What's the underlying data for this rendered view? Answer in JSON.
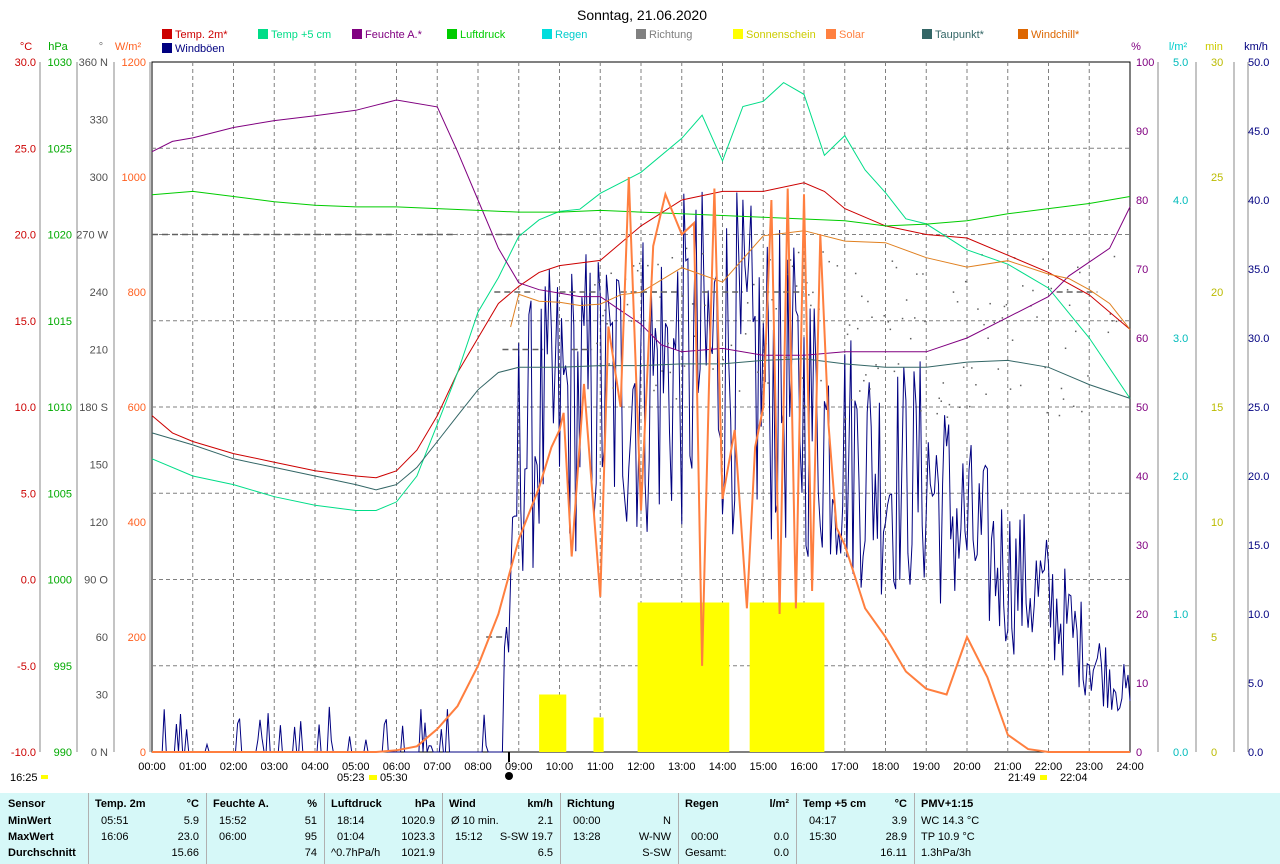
{
  "chart_data": {
    "type": "line",
    "title": "Sonntag, 21.06.2020",
    "x": [
      "00:00",
      "01:00",
      "02:00",
      "03:00",
      "04:00",
      "05:00",
      "06:00",
      "07:00",
      "08:00",
      "09:00",
      "10:00",
      "11:00",
      "12:00",
      "13:00",
      "14:00",
      "15:00",
      "16:00",
      "17:00",
      "18:00",
      "19:00",
      "20:00",
      "21:00",
      "22:00",
      "23:00",
      "24:00"
    ],
    "x_ticks": [
      "00:00",
      "01:00",
      "02:00",
      "03:00",
      "04:00",
      "05:00",
      "06:00",
      "07:00",
      "08:00",
      "09:00",
      "10:00",
      "11:00",
      "12:00",
      "13:00",
      "14:00",
      "15:00",
      "16:00",
      "17:00",
      "18:00",
      "19:00",
      "20:00",
      "21:00",
      "22:00",
      "23:00",
      "24:00"
    ],
    "sun_times": {
      "sunrise": "05:23",
      "sunrise2": "05:30",
      "sunset": "21:49",
      "sunset2": "22:04",
      "time_mark": "16:25"
    },
    "axes": {
      "temp": {
        "unit": "°C",
        "ticks": [
          "30.0",
          "25.0",
          "20.0",
          "15.0",
          "10.0",
          "5.0",
          "0.0",
          "-5.0",
          "-10.0"
        ],
        "ylim": [
          -10,
          30
        ],
        "color": "#cc0000"
      },
      "pressure": {
        "unit": "hPa",
        "ticks": [
          "1030",
          "1025",
          "1020",
          "1015",
          "1010",
          "1005",
          "1000",
          "995",
          "990"
        ],
        "ylim": [
          990,
          1030
        ],
        "color": "#00cc00"
      },
      "direction": {
        "unit": "°",
        "ticks": [
          "360 N",
          "330",
          "300",
          "270 W",
          "240",
          "210",
          "180 S",
          "150",
          "120",
          "90 O",
          "60",
          "30",
          "0 N"
        ],
        "ylim": [
          0,
          360
        ],
        "color": "#606060"
      },
      "solar": {
        "unit": "W/m²",
        "ticks": [
          "1200",
          "1000",
          "800",
          "600",
          "400",
          "200",
          "0"
        ],
        "ylim": [
          0,
          1200
        ],
        "color": "#ff8040"
      },
      "humidity": {
        "unit": "%",
        "ticks": [
          "100",
          "90",
          "80",
          "70",
          "60",
          "50",
          "40",
          "30",
          "20",
          "10",
          "0"
        ],
        "ylim": [
          0,
          100
        ],
        "color": "#800080"
      },
      "rain": {
        "unit": "l/m²",
        "ticks": [
          "5.0",
          "4.0",
          "3.0",
          "2.0",
          "1.0",
          "0.0"
        ],
        "ylim": [
          0,
          5
        ],
        "color": "#00cccc"
      },
      "sunshine": {
        "unit": "min",
        "ticks": [
          "30",
          "25",
          "20",
          "15",
          "10",
          "5",
          "0"
        ],
        "ylim": [
          0,
          30
        ],
        "color": "#cccc00"
      },
      "wind": {
        "unit": "km/h",
        "ticks": [
          "50.0",
          "45.0",
          "40.0",
          "35.0",
          "30.0",
          "25.0",
          "20.0",
          "15.0",
          "10.0",
          "5.0",
          "0.0"
        ],
        "ylim": [
          0,
          50
        ],
        "color": "#000080"
      }
    },
    "legend": [
      {
        "name": "Temp. 2m*",
        "color": "#cc0000"
      },
      {
        "name": "Temp +5 cm",
        "color": "#00dd88"
      },
      {
        "name": "Feuchte A.*",
        "color": "#800080"
      },
      {
        "name": "Luftdruck",
        "color": "#00cc00"
      },
      {
        "name": "Regen",
        "color": "#00dddd"
      },
      {
        "name": "Richtung",
        "color": "#808080"
      },
      {
        "name": "Sonnenschein",
        "color": "#ffff00"
      },
      {
        "name": "Solar",
        "color": "#ff8040"
      },
      {
        "name": "Taupunkt*",
        "color": "#336666"
      },
      {
        "name": "Windchill*",
        "color": "#dd6600"
      },
      {
        "name": "Windböen",
        "color": "#000080"
      }
    ],
    "series": [
      {
        "name": "Temp. 2m*",
        "axis": "temp",
        "x": [
          0,
          0.5,
          1,
          2,
          3,
          4,
          5,
          5.5,
          6,
          6.5,
          7,
          7.5,
          8,
          8.5,
          9,
          9.5,
          10,
          11,
          12,
          13,
          14,
          15,
          16,
          16.5,
          17,
          18,
          19,
          20,
          21,
          22,
          23,
          24
        ],
        "values": [
          9.5,
          8.5,
          8,
          7.3,
          6.8,
          6.3,
          6,
          5.9,
          6.3,
          7.5,
          9.5,
          12,
          14,
          16,
          17,
          17.8,
          18.2,
          18.5,
          20.5,
          22,
          22.5,
          22.5,
          23,
          22.5,
          21.5,
          20.5,
          20,
          19.8,
          18.8,
          17.8,
          16.5,
          14.5
        ]
      },
      {
        "name": "Temp +5 cm",
        "axis": "temp",
        "x": [
          0,
          1,
          2,
          3,
          4,
          5,
          5.5,
          6,
          6.5,
          7,
          7.5,
          8,
          8.5,
          9,
          9.5,
          10,
          10.5,
          11,
          12,
          13,
          13.5,
          14,
          14.5,
          15,
          15.5,
          16,
          16.5,
          17,
          17.5,
          18,
          18.5,
          19,
          20,
          21,
          22,
          23,
          24
        ],
        "values": [
          7,
          6,
          5.5,
          4.8,
          4.3,
          4,
          4,
          4.5,
          6,
          9,
          12,
          15.5,
          17.5,
          19.5,
          20.5,
          21.5,
          21.5,
          22.5,
          23.5,
          25.5,
          26.5,
          24,
          27.5,
          28,
          28.9,
          28,
          25,
          25.5,
          24,
          22,
          20.5,
          20.5,
          19.5,
          18,
          16.5,
          14,
          10.5
        ]
      },
      {
        "name": "Feuchte A.*",
        "axis": "humidity",
        "x": [
          0,
          0.5,
          1,
          2,
          3,
          4,
          5,
          6,
          7,
          7.5,
          8,
          8.5,
          9,
          9.5,
          10,
          10.5,
          11,
          11.5,
          12,
          12.5,
          13,
          14,
          15,
          16,
          17,
          18,
          19,
          20,
          21,
          22,
          22.5,
          23,
          23.5,
          24
        ],
        "values": [
          87,
          88.5,
          89,
          90.5,
          91.5,
          92.2,
          93,
          94.5,
          93.5,
          87,
          80,
          73,
          68,
          67,
          66.5,
          66,
          66,
          64,
          62,
          59,
          58,
          58.5,
          57.5,
          57.5,
          58,
          58,
          58,
          60,
          63,
          66,
          69,
          71,
          73,
          79
        ]
      },
      {
        "name": "Luftdruck",
        "axis": "pressure",
        "x": [
          0,
          1,
          2,
          3,
          4,
          5,
          6,
          7,
          8,
          9,
          10,
          11,
          12,
          13,
          14,
          15,
          16,
          17,
          18,
          19,
          20,
          21,
          22,
          23,
          24
        ],
        "values": [
          1022.3,
          1022.5,
          1022.2,
          1021.9,
          1021.7,
          1021.6,
          1021.6,
          1021.5,
          1021.4,
          1021.3,
          1021.3,
          1021.4,
          1021.3,
          1021.2,
          1021.1,
          1021.0,
          1020.9,
          1020.8,
          1020.5,
          1020.6,
          1020.8,
          1021.2,
          1021.5,
          1021.8,
          1022.2
        ]
      },
      {
        "name": "Taupunkt*",
        "axis": "temp",
        "x": [
          0,
          1,
          2,
          3,
          4,
          5,
          5.5,
          6,
          6.5,
          7,
          7.5,
          8,
          8.5,
          9,
          10,
          11,
          12,
          13,
          14,
          15,
          16,
          17,
          18,
          19,
          20,
          21,
          22,
          23,
          24
        ],
        "values": [
          8.5,
          7.8,
          7,
          6.5,
          6,
          5.5,
          5.2,
          5.5,
          6.5,
          8,
          9.5,
          11,
          12,
          12.3,
          12.3,
          12.4,
          12.4,
          12.5,
          12.5,
          12.7,
          12.8,
          12.5,
          12.3,
          12.3,
          12.6,
          12.7,
          12.3,
          11.3,
          10.5
        ]
      },
      {
        "name": "Windchill*",
        "axis": "temp",
        "x": [
          8.8,
          9,
          9.5,
          10,
          10.5,
          11,
          11.5,
          12,
          13,
          14,
          15,
          16,
          17,
          18,
          19,
          20,
          21,
          22,
          22.5,
          23,
          23.5,
          24
        ],
        "values": [
          15,
          16.5,
          16,
          16,
          16,
          16,
          16.5,
          17,
          18.5,
          17.5,
          19.5,
          20.5,
          19.5,
          19.5,
          18.5,
          18,
          18.5,
          17.5,
          17.3,
          16.8,
          16,
          14.5
        ]
      },
      {
        "name": "Solar",
        "axis": "solar",
        "x": [
          0,
          4,
          5,
          5.5,
          6,
          6.5,
          7,
          7.5,
          8,
          8.5,
          9,
          9.5,
          9.8,
          10,
          10.1,
          10.3,
          10.6,
          11,
          11.2,
          11.5,
          11.7,
          12,
          12.3,
          12.6,
          13,
          13.3,
          13.5,
          13.7,
          13.8,
          14,
          14.3,
          14.6,
          14.8,
          15,
          15.2,
          15.4,
          15.6,
          15.8,
          16,
          16.2,
          16.4,
          16.6,
          16.8,
          17,
          17.5,
          18,
          18.5,
          19,
          19.5,
          20,
          20.5,
          21,
          21.5,
          22,
          24
        ],
        "values": [
          0,
          0,
          0,
          0,
          3,
          10,
          40,
          80,
          150,
          240,
          370,
          460,
          530,
          560,
          590,
          340,
          640,
          270,
          740,
          600,
          1000,
          420,
          880,
          970,
          900,
          920,
          150,
          730,
          980,
          440,
          560,
          250,
          530,
          600,
          960,
          240,
          980,
          250,
          970,
          280,
          900,
          570,
          390,
          360,
          250,
          200,
          140,
          110,
          100,
          200,
          130,
          30,
          5,
          0,
          0
        ]
      }
    ],
    "sunshine_periods": [
      {
        "start": "09:30",
        "end": "10:10",
        "minutes": 2.5
      },
      {
        "start": "10:50",
        "end": "11:05",
        "minutes": 1.5
      },
      {
        "start": "11:55",
        "end": "14:10",
        "minutes": 6.5
      },
      {
        "start": "14:40",
        "end": "16:30",
        "minutes": 6.5
      }
    ]
  },
  "stats": {
    "headers": {
      "sensor": "Sensor",
      "temp": "Temp. 2m",
      "temp_unit": "°C",
      "hum": "Feuchte A.",
      "hum_unit": "%",
      "press": "Luftdruck",
      "press_unit": "hPa",
      "wind": "Wind",
      "wind_unit": "km/h",
      "dir": "Richtung",
      "rain": "Regen",
      "rain_unit": "l/m²",
      "temp5": "Temp +5 cm",
      "temp5_unit": "°C",
      "pmv": "PMV+1:15"
    },
    "rows": [
      {
        "label": "MinWert",
        "temp_time": "05:51",
        "temp_val": "5.9",
        "hum_time": "15:52",
        "hum_val": "51",
        "press_time": "18:14",
        "press_val": "1020.9",
        "wind_label": "Ø 10 min.",
        "wind_val": "2.1",
        "dir_time": "00:00",
        "dir_val": "N",
        "rain_time": "",
        "rain_val": "",
        "t5_time": "04:17",
        "t5_val": "3.9",
        "pmv": "WC 14.3 °C"
      },
      {
        "label": "MaxWert",
        "temp_time": "16:06",
        "temp_val": "23.0",
        "hum_time": "06:00",
        "hum_val": "95",
        "press_time": "01:04",
        "press_val": "1023.3",
        "wind_label": "15:12",
        "wind_val": "S-SW 19.7",
        "dir_time": "13:28",
        "dir_val": "W-NW",
        "rain_time": "00:00",
        "rain_val": "0.0",
        "t5_time": "15:30",
        "t5_val": "28.9",
        "pmv": "TP 10.9 °C"
      },
      {
        "label": "Durchschnitt",
        "temp_time": "",
        "temp_val": "15.66",
        "hum_time": "",
        "hum_val": "74",
        "press_time": "^0.7hPa/h",
        "press_val": "1021.9",
        "wind_label": "",
        "wind_val": "6.5",
        "dir_time": "",
        "dir_val": "S-SW",
        "rain_time": "Gesamt:",
        "rain_val": "0.0",
        "t5_time": "",
        "t5_val": "16.11",
        "pmv": "1.3hPa/3h"
      }
    ]
  }
}
